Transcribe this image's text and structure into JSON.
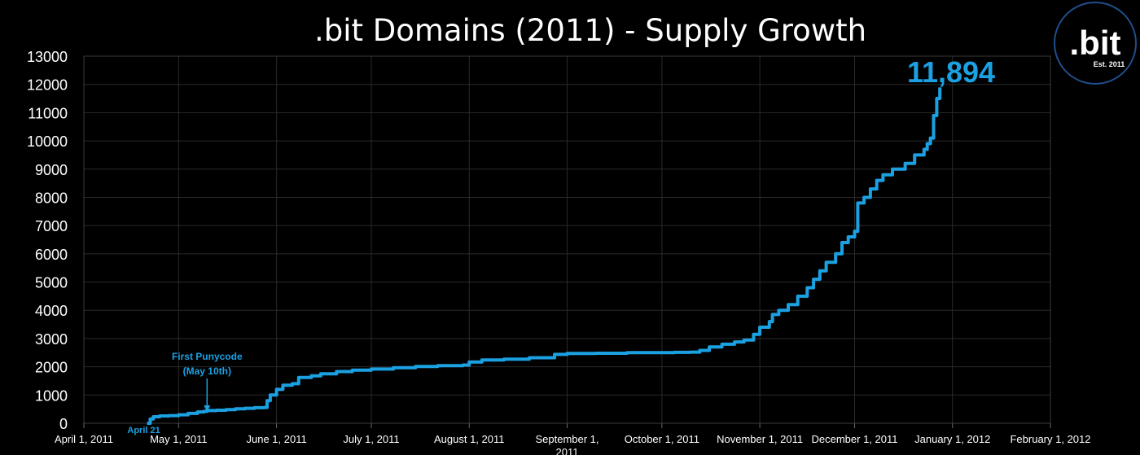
{
  "chart_data": {
    "type": "line",
    "title": ".bit Domains (2011) - Supply Growth",
    "xlabel": "",
    "ylabel": "",
    "x_ticks": [
      "April 1, 2011",
      "May 1, 2011",
      "June 1, 2011",
      "July 1, 2011",
      "August 1, 2011",
      "September 1, 2011",
      "October 1, 2011",
      "November 1, 2011",
      "December 1, 2011",
      "January 1, 2012",
      "February 1, 2012"
    ],
    "y_ticks": [
      0,
      1000,
      2000,
      3000,
      4000,
      5000,
      6000,
      7000,
      8000,
      9000,
      10000,
      11000,
      12000,
      13000
    ],
    "ylim": [
      0,
      13000
    ],
    "xlim": [
      "2011-04-01",
      "2012-02-01"
    ],
    "grid": true,
    "series_color": "#1ba1e2",
    "final_label": "11,894",
    "logo": {
      "text": ".bit",
      "subtext": "Est. 2011"
    },
    "annotations": [
      {
        "text": "April 21",
        "x": "2011-04-21"
      },
      {
        "text": "First Punycode\n(May 10th)",
        "x": "2011-05-10"
      }
    ],
    "series": [
      {
        "x": [
          "2011-04-21",
          "2011-04-22",
          "2011-04-23",
          "2011-04-25",
          "2011-04-28",
          "2011-05-01",
          "2011-05-04",
          "2011-05-07",
          "2011-05-09",
          "2011-05-10",
          "2011-05-13",
          "2011-05-16",
          "2011-05-19",
          "2011-05-22",
          "2011-05-25",
          "2011-05-28",
          "2011-05-29",
          "2011-05-30",
          "2011-06-01",
          "2011-06-03",
          "2011-06-06",
          "2011-06-08",
          "2011-06-12",
          "2011-06-15",
          "2011-06-20",
          "2011-06-25",
          "2011-07-01",
          "2011-07-08",
          "2011-07-15",
          "2011-07-22",
          "2011-07-30",
          "2011-08-01",
          "2011-08-05",
          "2011-08-12",
          "2011-08-20",
          "2011-08-28",
          "2011-09-01",
          "2011-09-10",
          "2011-09-20",
          "2011-09-30",
          "2011-10-05",
          "2011-10-10",
          "2011-10-13",
          "2011-10-16",
          "2011-10-20",
          "2011-10-24",
          "2011-10-27",
          "2011-10-30",
          "2011-11-01",
          "2011-11-04",
          "2011-11-05",
          "2011-11-07",
          "2011-11-10",
          "2011-11-13",
          "2011-11-16",
          "2011-11-18",
          "2011-11-20",
          "2011-11-22",
          "2011-11-25",
          "2011-11-27",
          "2011-11-29",
          "2011-12-01",
          "2011-12-02",
          "2011-12-04",
          "2011-12-06",
          "2011-12-08",
          "2011-12-10",
          "2011-12-13",
          "2011-12-17",
          "2011-12-20",
          "2011-12-23",
          "2011-12-24",
          "2011-12-25",
          "2011-12-26",
          "2011-12-27",
          "2011-12-28"
        ],
        "y": [
          0,
          150,
          230,
          260,
          270,
          300,
          350,
          400,
          420,
          450,
          460,
          480,
          510,
          530,
          550,
          560,
          800,
          1000,
          1200,
          1350,
          1400,
          1620,
          1680,
          1750,
          1830,
          1880,
          1920,
          1970,
          2010,
          2040,
          2060,
          2170,
          2240,
          2270,
          2320,
          2440,
          2470,
          2480,
          2500,
          2500,
          2510,
          2520,
          2580,
          2700,
          2800,
          2880,
          2950,
          3150,
          3400,
          3600,
          3850,
          4000,
          4200,
          4500,
          4800,
          5100,
          5400,
          5700,
          6000,
          6400,
          6600,
          6800,
          7800,
          8000,
          8300,
          8600,
          8800,
          9000,
          9200,
          9500,
          9700,
          9900,
          10100,
          10900,
          11500,
          11894
        ]
      }
    ]
  }
}
